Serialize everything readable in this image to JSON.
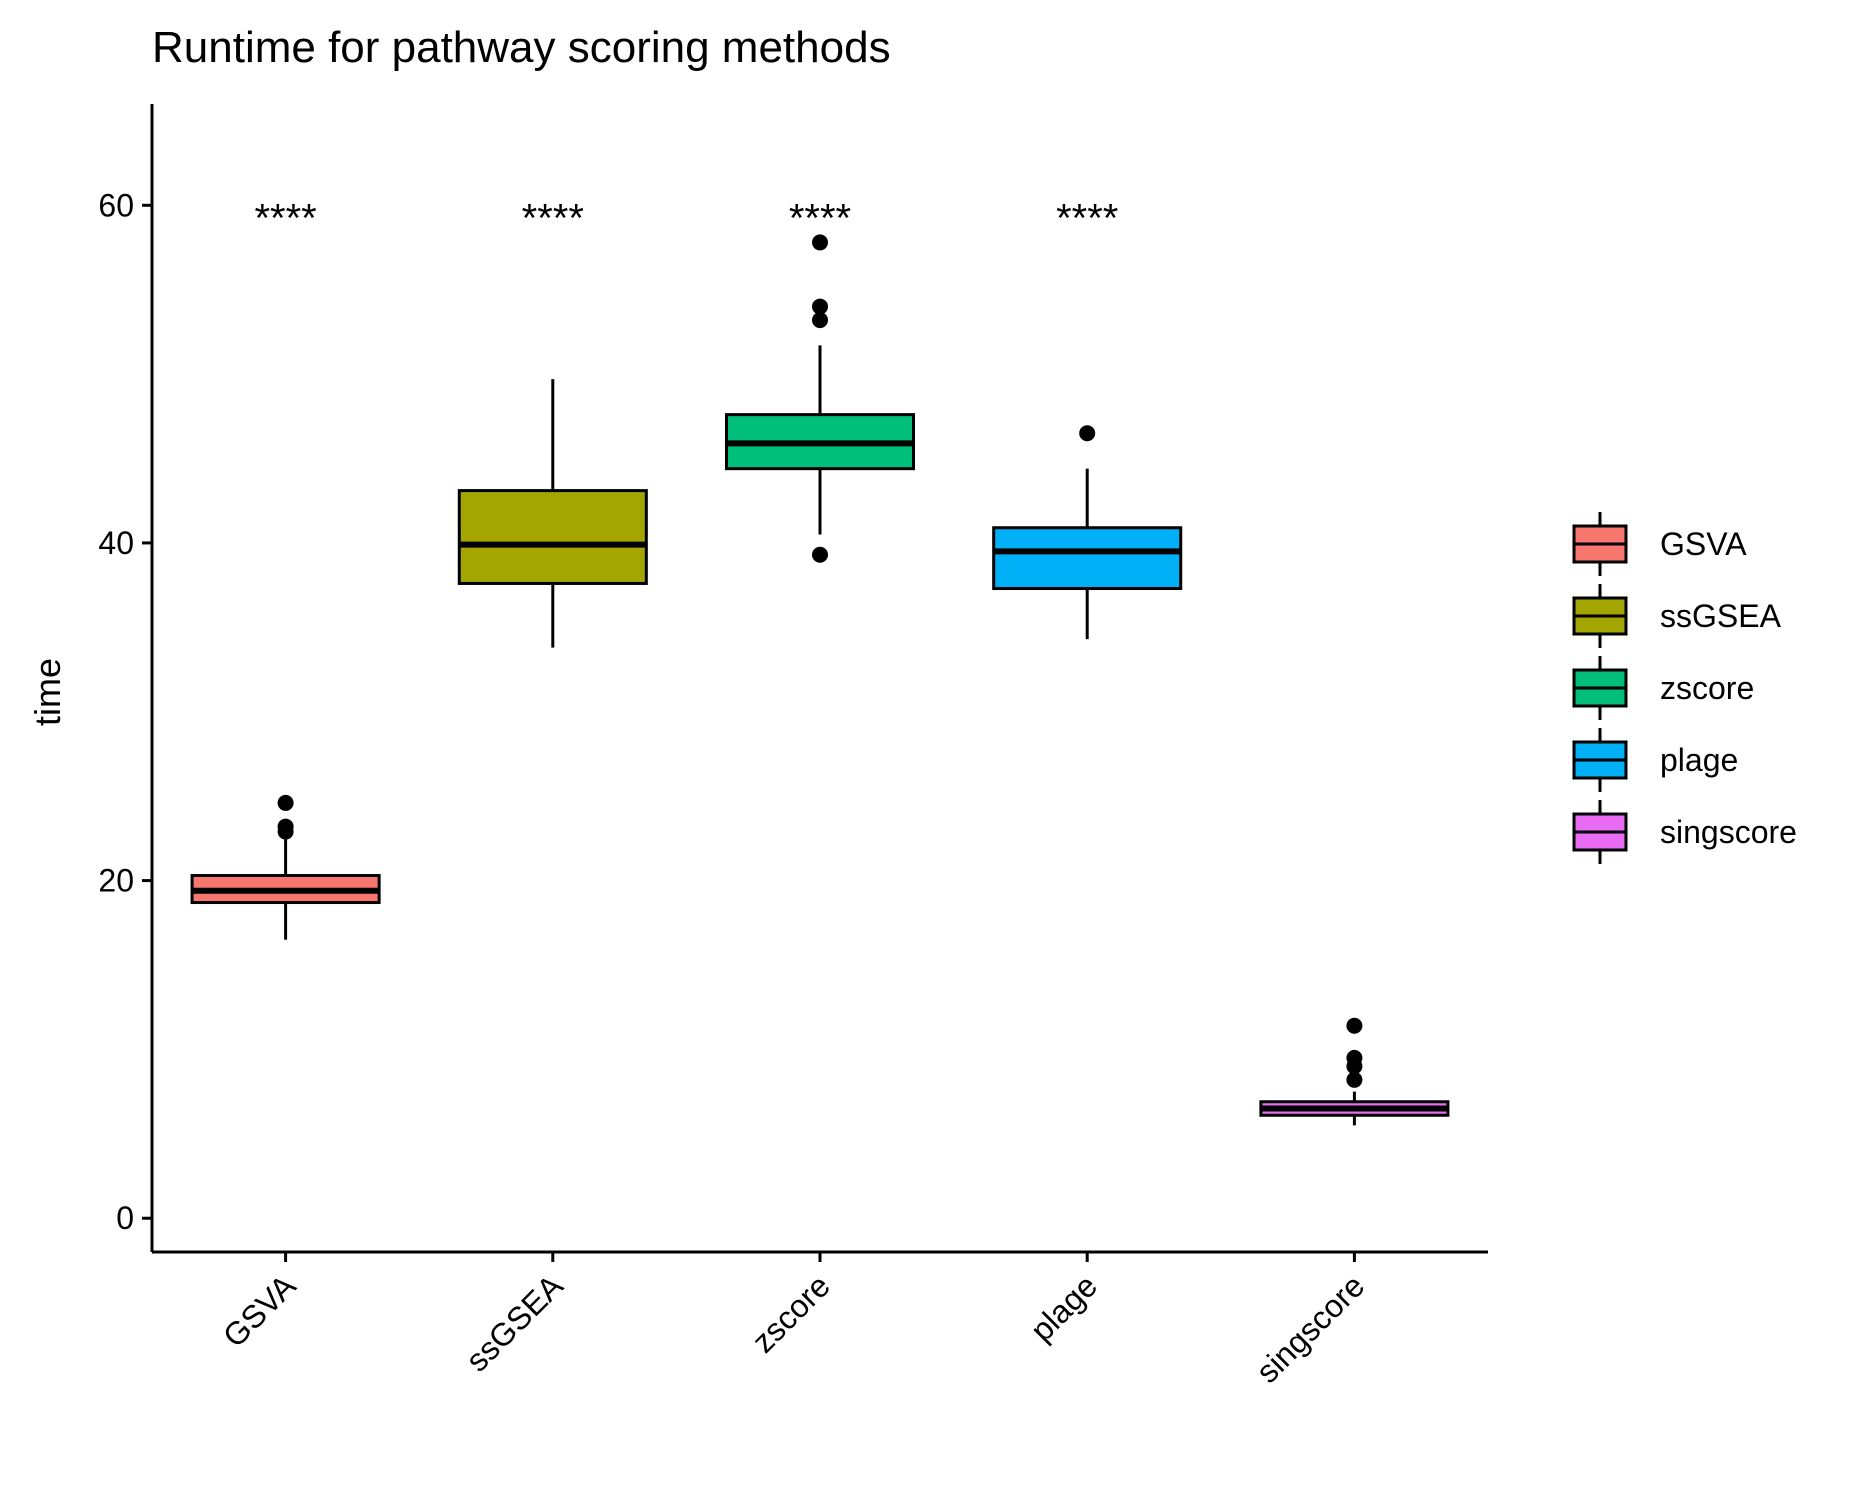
{
  "chart_data": {
    "type": "box",
    "title": "Runtime for pathway scoring methods",
    "xlabel": "",
    "ylabel": "time",
    "ylim": [
      -2,
      66
    ],
    "yticks": [
      0,
      20,
      40,
      60
    ],
    "categories": [
      "GSVA",
      "ssGSEA",
      "zscore",
      "plage",
      "singscore"
    ],
    "colors": [
      "#F8766D",
      "#A3A500",
      "#00BF7D",
      "#00B0F6",
      "#E76BF3"
    ],
    "boxes": [
      {
        "name": "GSVA",
        "whisker_low": 16.5,
        "q1": 18.7,
        "median": 19.4,
        "q3": 20.3,
        "whisker_high": 22.6,
        "outliers": [
          24.6,
          23.2,
          22.9
        ]
      },
      {
        "name": "ssGSEA",
        "whisker_low": 33.8,
        "q1": 37.6,
        "median": 39.9,
        "q3": 43.1,
        "whisker_high": 49.7,
        "outliers": []
      },
      {
        "name": "zscore",
        "whisker_low": 40.5,
        "q1": 44.4,
        "median": 45.9,
        "q3": 47.6,
        "whisker_high": 51.7,
        "outliers": [
          57.8,
          54.0,
          53.2,
          39.3
        ]
      },
      {
        "name": "plage",
        "whisker_low": 34.3,
        "q1": 37.3,
        "median": 39.5,
        "q3": 40.9,
        "whisker_high": 44.4,
        "outliers": [
          46.5
        ]
      },
      {
        "name": "singscore",
        "whisker_low": 5.5,
        "q1": 6.1,
        "median": 6.5,
        "q3": 6.9,
        "whisker_high": 7.5,
        "outliers": [
          11.4,
          9.5,
          9.0,
          8.2
        ]
      }
    ],
    "annotations": [
      {
        "category": "GSVA",
        "text": "****",
        "y": 60
      },
      {
        "category": "ssGSEA",
        "text": "****",
        "y": 60
      },
      {
        "category": "zscore",
        "text": "****",
        "y": 60
      },
      {
        "category": "plage",
        "text": "****",
        "y": 60
      }
    ],
    "legend": {
      "position": "right",
      "entries": [
        "GSVA",
        "ssGSEA",
        "zscore",
        "plage",
        "singscore"
      ]
    },
    "grid": false
  }
}
